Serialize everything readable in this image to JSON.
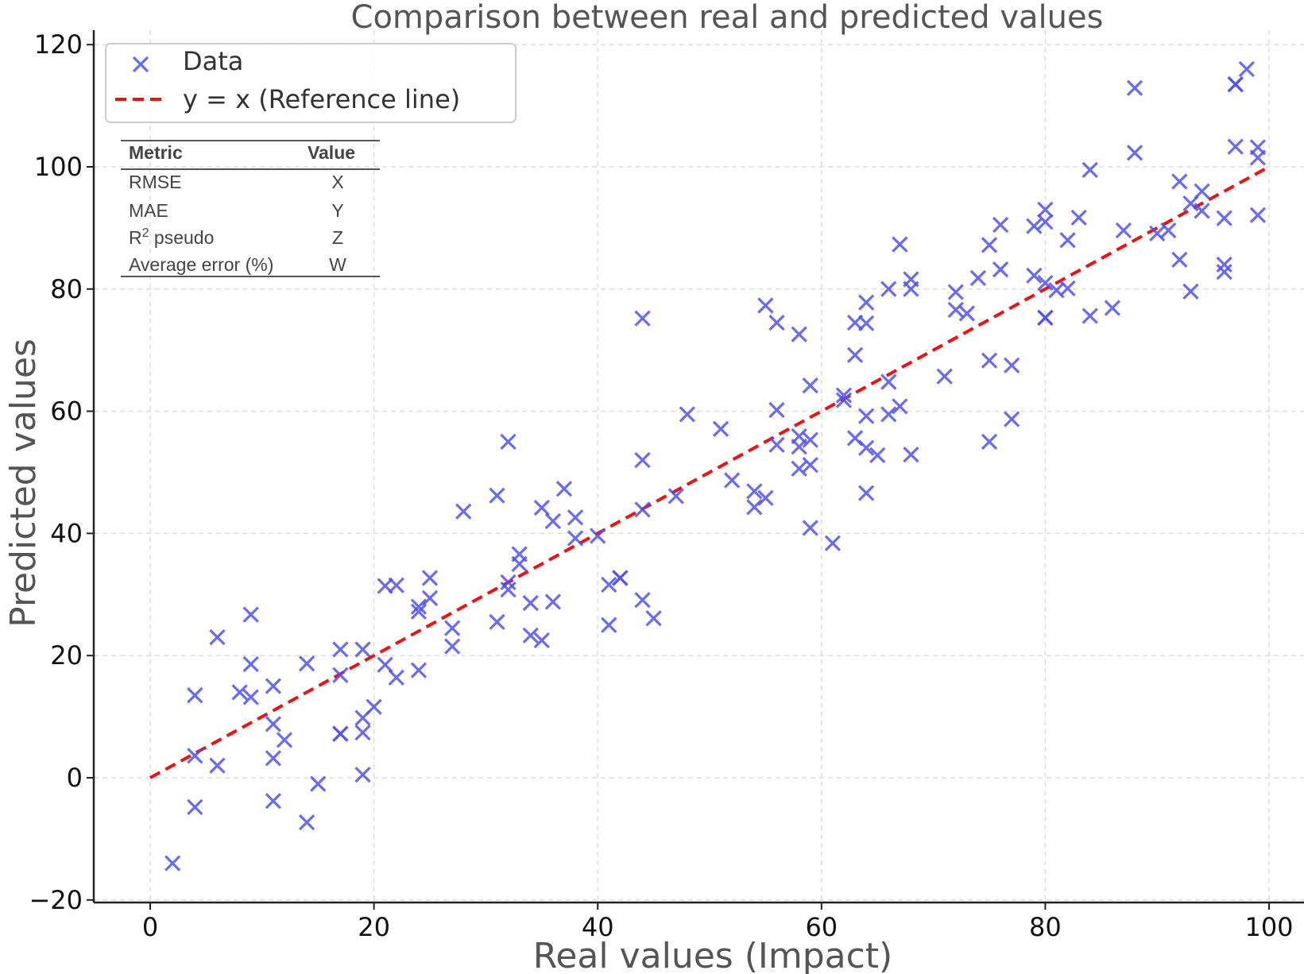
{
  "colors": {
    "data": "#5050f0",
    "reference": "#ee1111",
    "grid": "#dddddd",
    "axis": "#222222"
  },
  "chart_data": {
    "type": "scatter",
    "title": "Comparison between real and predicted values",
    "xlabel": "Real values (Impact)",
    "ylabel": "Predicted values",
    "xlim": [
      -5,
      102
    ],
    "ylim": [
      -21,
      122
    ],
    "x_ticks": [
      "0",
      "20",
      "40",
      "60",
      "80",
      "100"
    ],
    "y_ticks": [
      "−20",
      "0",
      "20",
      "40",
      "60",
      "80",
      "100",
      "120"
    ],
    "grid": true,
    "legend_position": "top-left",
    "legend": {
      "data_label": "Data",
      "reference_label": "y = x  (Reference line)"
    },
    "reference_line": {
      "x": [
        0,
        100
      ],
      "y": [
        0,
        100
      ]
    },
    "metrics_table": {
      "headers": [
        "Metric",
        "Value"
      ],
      "rows": [
        {
          "metric_base": "R",
          "metric_sup": "",
          "metric_rest": "MSE",
          "value": "X"
        },
        {
          "metric_base": "MAE",
          "metric_sup": "",
          "metric_rest": "",
          "value": "Y"
        },
        {
          "metric_base": "R",
          "metric_sup": "2",
          "metric_rest": " pseudo",
          "value": "Z"
        },
        {
          "metric_base": "Average error (%)",
          "metric_sup": "",
          "metric_rest": "",
          "value": "W"
        }
      ]
    },
    "series": [
      {
        "name": "Data",
        "points": [
          [
            2,
            -14
          ],
          [
            4,
            -4.8
          ],
          [
            4,
            3.6
          ],
          [
            4,
            13.5
          ],
          [
            6,
            2
          ],
          [
            6,
            23
          ],
          [
            8,
            14
          ],
          [
            9,
            13.2
          ],
          [
            9,
            18.6
          ],
          [
            9,
            26.7
          ],
          [
            11,
            -3.8
          ],
          [
            11,
            3.2
          ],
          [
            11,
            8.8
          ],
          [
            11,
            15
          ],
          [
            12,
            6.2
          ],
          [
            14,
            -7.3
          ],
          [
            14,
            18.7
          ],
          [
            15,
            -1
          ],
          [
            17,
            7.2
          ],
          [
            17,
            7.2
          ],
          [
            17,
            16.8
          ],
          [
            17,
            21
          ],
          [
            19,
            0.5
          ],
          [
            19,
            7.4
          ],
          [
            19,
            9.8
          ],
          [
            19,
            21
          ],
          [
            20,
            11.6
          ],
          [
            21,
            18.5
          ],
          [
            21,
            31.4
          ],
          [
            22,
            16.4
          ],
          [
            22,
            31.5
          ],
          [
            24,
            17.6
          ],
          [
            24,
            27.2
          ],
          [
            24,
            28
          ],
          [
            25,
            29.4
          ],
          [
            25,
            32.7
          ],
          [
            27,
            21.5
          ],
          [
            27,
            24.5
          ],
          [
            28,
            43.6
          ],
          [
            31,
            25.5
          ],
          [
            31,
            46.2
          ],
          [
            32,
            30.8
          ],
          [
            32,
            32
          ],
          [
            32,
            55
          ],
          [
            33,
            35
          ],
          [
            33,
            36.6
          ],
          [
            34,
            23.3
          ],
          [
            34,
            28.6
          ],
          [
            35,
            22.5
          ],
          [
            35,
            44.2
          ],
          [
            36,
            28.8
          ],
          [
            36,
            42
          ],
          [
            37,
            47.3
          ],
          [
            38,
            39.2
          ],
          [
            38,
            42.6
          ],
          [
            40,
            39.6
          ],
          [
            41,
            25
          ],
          [
            41,
            31.6
          ],
          [
            42,
            32.7
          ],
          [
            42,
            32.7
          ],
          [
            44,
            29.1
          ],
          [
            44,
            43.9
          ],
          [
            44,
            52
          ],
          [
            44,
            75.2
          ],
          [
            45,
            26.1
          ],
          [
            47,
            46.1
          ],
          [
            48,
            59.5
          ],
          [
            51,
            57.1
          ],
          [
            52,
            48.7
          ],
          [
            54,
            44.3
          ],
          [
            54,
            46.9
          ],
          [
            55,
            45.8
          ],
          [
            55,
            77.3
          ],
          [
            56,
            54.5
          ],
          [
            56,
            60.2
          ],
          [
            56,
            74.5
          ],
          [
            58,
            50.6
          ],
          [
            58,
            54.2
          ],
          [
            58,
            55.9
          ],
          [
            58,
            72.6
          ],
          [
            59,
            40.9
          ],
          [
            59,
            51.2
          ],
          [
            59,
            55.3
          ],
          [
            59,
            64.2
          ],
          [
            61,
            38.4
          ],
          [
            62,
            61.8
          ],
          [
            62,
            62.6
          ],
          [
            63,
            55.6
          ],
          [
            63,
            69.2
          ],
          [
            63,
            74.5
          ],
          [
            64,
            46.6
          ],
          [
            64,
            54
          ],
          [
            64,
            59.2
          ],
          [
            64,
            74.4
          ],
          [
            64,
            77.8
          ],
          [
            65,
            52.8
          ],
          [
            66,
            59.5
          ],
          [
            66,
            64.8
          ],
          [
            66,
            80
          ],
          [
            67,
            60.8
          ],
          [
            67,
            87.3
          ],
          [
            68,
            52.9
          ],
          [
            68,
            80
          ],
          [
            68,
            81.6
          ],
          [
            71,
            65.7
          ],
          [
            72,
            76.6
          ],
          [
            72,
            79.5
          ],
          [
            73,
            76
          ],
          [
            74,
            81.8
          ],
          [
            75,
            55
          ],
          [
            75,
            68.3
          ],
          [
            75,
            87.2
          ],
          [
            76,
            83.2
          ],
          [
            76,
            90.5
          ],
          [
            77,
            58.7
          ],
          [
            77,
            67.5
          ],
          [
            79,
            82.2
          ],
          [
            79,
            90.3
          ],
          [
            80,
            75.3
          ],
          [
            80,
            75.3
          ],
          [
            80,
            81
          ],
          [
            80,
            91
          ],
          [
            80,
            93
          ],
          [
            81,
            79.8
          ],
          [
            82,
            80.1
          ],
          [
            82,
            88
          ],
          [
            83,
            91.7
          ],
          [
            84,
            75.6
          ],
          [
            84,
            99.5
          ],
          [
            86,
            76.9
          ],
          [
            87,
            89.6
          ],
          [
            88,
            102.3
          ],
          [
            88,
            112.9
          ],
          [
            90,
            89.1
          ],
          [
            91,
            89.6
          ],
          [
            92,
            84.8
          ],
          [
            92,
            97.6
          ],
          [
            93,
            79.6
          ],
          [
            93,
            94
          ],
          [
            94,
            92.8
          ],
          [
            94,
            96
          ],
          [
            96,
            82.8
          ],
          [
            96,
            84
          ],
          [
            96,
            91.6
          ],
          [
            97,
            103.3
          ],
          [
            97,
            113.5
          ],
          [
            97,
            113.5
          ],
          [
            98,
            116
          ],
          [
            99,
            92.1
          ],
          [
            99,
            101.5
          ],
          [
            99,
            103.2
          ]
        ]
      }
    ]
  }
}
